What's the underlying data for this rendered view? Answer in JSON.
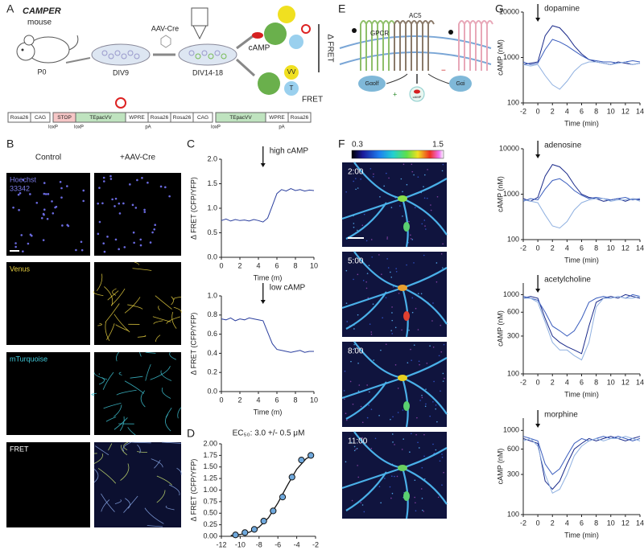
{
  "panels": {
    "letters": [
      "A",
      "B",
      "C",
      "D",
      "E",
      "F",
      "G"
    ],
    "A": {
      "title": "CAMPER",
      "subtitle": "mouse",
      "virus": "AAV-Cre",
      "stages": [
        "P0",
        "DIV9",
        "DIV14-18"
      ],
      "sensor": [
        "cAMP",
        "Δ FRET",
        "VV",
        "T",
        "FRET"
      ],
      "construct_off": [
        "Rosa26",
        "CAG",
        "STOP",
        "TEpacVV",
        "WPRE",
        "Rosa26"
      ],
      "construct_off_sites": [
        "loxP",
        "loxP",
        "pA"
      ],
      "construct_on": [
        "Rosa26",
        "CAG",
        "TEpacVV",
        "WPRE",
        "Rosa26"
      ],
      "construct_on_sites": [
        "loxP",
        "pA"
      ]
    },
    "B": {
      "columns": [
        "Control",
        "+AAV-Cre"
      ],
      "rows": [
        [
          "Hoechst",
          "33342"
        ],
        [
          "Venus"
        ],
        [
          "mTurquoise"
        ],
        [
          "FRET"
        ]
      ]
    },
    "E": {
      "receptor": "GPCR",
      "cyclase": "AC5",
      "g_stim": "Gαolf",
      "g_inhib": "Gαi",
      "product": "cAMP",
      "plus": "+",
      "minus": "−"
    },
    "F": {
      "colorbar_range": [
        0.3,
        1.5
      ],
      "times": [
        "2:00",
        "5:00",
        "8:00",
        "11:00"
      ]
    }
  },
  "chart_data": [
    {
      "type": "line",
      "title": "high cAMP",
      "arrow_x": 4.5,
      "xlabel": "Time (m)",
      "ylabel": "Δ FRET (CFP/YFP)",
      "x": [
        0,
        0.5,
        1,
        1.5,
        2,
        2.5,
        3,
        3.5,
        4,
        4.5,
        5,
        5.5,
        6,
        6.5,
        7,
        7.5,
        8,
        8.5,
        9,
        9.5,
        10
      ],
      "series": [
        {
          "color": "#2b3f9e",
          "values": [
            0.75,
            0.78,
            0.74,
            0.77,
            0.75,
            0.76,
            0.74,
            0.77,
            0.75,
            0.72,
            0.8,
            1.05,
            1.3,
            1.38,
            1.35,
            1.4,
            1.36,
            1.38,
            1.35,
            1.37,
            1.36
          ]
        }
      ],
      "xlim": [
        0,
        10
      ],
      "xticks": [
        0,
        2,
        4,
        6,
        8,
        10
      ],
      "ylim": [
        0,
        2
      ],
      "yticks": [
        {
          "value": 0,
          "label": "0.0"
        },
        {
          "value": 0.5,
          "label": "0.5"
        },
        {
          "value": 1,
          "label": "1.0"
        },
        {
          "value": 1.5,
          "label": "1.5"
        },
        {
          "value": 2,
          "label": "2.0"
        }
      ]
    },
    {
      "type": "line",
      "title": "low cAMP",
      "arrow_x": 4.5,
      "xlabel": "Time (m)",
      "ylabel": "Δ FRET (CFP/YFP)",
      "x": [
        0,
        0.5,
        1,
        1.5,
        2,
        2.5,
        3,
        3.5,
        4,
        4.5,
        5,
        5.5,
        6,
        6.5,
        7,
        7.5,
        8,
        8.5,
        9,
        9.5,
        10
      ],
      "series": [
        {
          "color": "#2b3f9e",
          "values": [
            0.76,
            0.75,
            0.77,
            0.74,
            0.76,
            0.75,
            0.77,
            0.76,
            0.75,
            0.74,
            0.62,
            0.5,
            0.44,
            0.43,
            0.42,
            0.41,
            0.42,
            0.43,
            0.41,
            0.42,
            0.42
          ]
        }
      ],
      "xlim": [
        0,
        10
      ],
      "xticks": [
        0,
        2,
        4,
        6,
        8,
        10
      ],
      "ylim": [
        0,
        1
      ],
      "yticks": [
        {
          "value": 0,
          "label": "0.0"
        },
        {
          "value": 0.2,
          "label": "0.2"
        },
        {
          "value": 0.4,
          "label": "0.4"
        },
        {
          "value": 0.6,
          "label": "0.6"
        },
        {
          "value": 0.8,
          "label": "0.8"
        },
        {
          "value": 1,
          "label": "1.0"
        }
      ]
    },
    {
      "type": "scatter",
      "title": "EC₅₀: 3.0 +/- 0.5 μM",
      "xlabel": "cAMP, log M",
      "ylabel": "Δ FRET (CFP/YFP)",
      "color": "#6fa8dc",
      "x": [
        -10.5,
        -9.5,
        -8.5,
        -7.5,
        -6.5,
        -5.5,
        -4.5,
        -3.5,
        -2.5
      ],
      "values": [
        0.03,
        0.08,
        0.15,
        0.33,
        0.55,
        0.85,
        1.28,
        1.65,
        1.75
      ],
      "fit": {
        "x": [
          -11,
          -10,
          -9,
          -8,
          -7,
          -6,
          -5,
          -4,
          -3,
          -2.5
        ],
        "values": [
          0.02,
          0.04,
          0.09,
          0.2,
          0.4,
          0.72,
          1.1,
          1.45,
          1.68,
          1.73
        ]
      },
      "xlim": [
        -12,
        -2
      ],
      "xticks": [
        -12,
        -10,
        -8,
        -6,
        -4,
        -2
      ],
      "ylim": [
        0,
        2
      ],
      "yticks": [
        {
          "value": 0,
          "label": "0.00"
        },
        {
          "value": 0.25,
          "label": "0.25"
        },
        {
          "value": 0.5,
          "label": "0.50"
        },
        {
          "value": 0.75,
          "label": "0.75"
        },
        {
          "value": 1,
          "label": "1.00"
        },
        {
          "value": 1.25,
          "label": "1.25"
        },
        {
          "value": 1.5,
          "label": "1.50"
        },
        {
          "value": 1.75,
          "label": "1.75"
        },
        {
          "value": 2,
          "label": "2.00"
        }
      ]
    },
    {
      "type": "line",
      "title": "dopamine",
      "arrow_x": 0,
      "xlabel": "Time (min)",
      "ylabel": "cAMP (nM)",
      "log_y": true,
      "x": [
        -2,
        -1,
        0,
        1,
        2,
        3,
        4,
        5,
        6,
        7,
        8,
        9,
        10,
        11,
        12,
        13,
        14
      ],
      "series": [
        {
          "color": "#1a2a8a",
          "values": [
            700,
            750,
            800,
            3000,
            5000,
            4500,
            3000,
            1800,
            1200,
            900,
            800,
            750,
            700,
            800,
            750,
            700,
            750
          ]
        },
        {
          "color": "#3a5dbd",
          "values": [
            800,
            700,
            750,
            1500,
            2500,
            2200,
            1800,
            1400,
            1100,
            900,
            850,
            800,
            800,
            750,
            800,
            850,
            800
          ]
        },
        {
          "color": "#8fb0e0",
          "values": [
            700,
            650,
            700,
            400,
            250,
            200,
            300,
            500,
            700,
            800,
            800,
            750,
            700,
            750,
            800,
            700,
            750
          ]
        }
      ],
      "xlim": [
        -2,
        14
      ],
      "xticks": [
        -2,
        0,
        2,
        4,
        6,
        8,
        10,
        12,
        14
      ],
      "ylim": [
        100,
        10000
      ],
      "yticks": [
        100,
        1000,
        10000
      ]
    },
    {
      "type": "line",
      "title": "adenosine",
      "arrow_x": 0,
      "xlabel": "Time (min)",
      "ylabel": "cAMP (nM)",
      "log_y": true,
      "x": [
        -2,
        -1,
        0,
        1,
        2,
        3,
        4,
        5,
        6,
        7,
        8,
        9,
        10,
        11,
        12,
        13,
        14
      ],
      "series": [
        {
          "color": "#1a2a8a",
          "values": [
            800,
            700,
            850,
            2500,
            4500,
            4000,
            2800,
            1600,
            1000,
            850,
            800,
            700,
            750,
            800,
            700,
            800,
            750
          ]
        },
        {
          "color": "#3a5dbd",
          "values": [
            700,
            800,
            750,
            1300,
            2000,
            2200,
            1700,
            1200,
            950,
            800,
            850,
            800,
            750,
            800,
            850,
            750,
            800
          ]
        },
        {
          "color": "#8fb0e0",
          "values": [
            750,
            700,
            650,
            350,
            200,
            180,
            250,
            450,
            650,
            750,
            800,
            800,
            700,
            750,
            750,
            800,
            700
          ]
        }
      ],
      "xlim": [
        -2,
        14
      ],
      "xticks": [
        -2,
        0,
        2,
        4,
        6,
        8,
        10,
        12,
        14
      ],
      "ylim": [
        100,
        10000
      ],
      "yticks": [
        100,
        1000,
        10000
      ]
    },
    {
      "type": "line",
      "title": "acetylcholine",
      "arrow_x": 0,
      "xlabel": "Time (min)",
      "ylabel": "cAMP (nM)",
      "log_y": true,
      "x": [
        -2,
        -1,
        0,
        1,
        2,
        3,
        4,
        5,
        6,
        7,
        8,
        9,
        10,
        11,
        12,
        13,
        14
      ],
      "series": [
        {
          "color": "#1a2a8a",
          "values": [
            900,
            950,
            900,
            500,
            300,
            250,
            220,
            200,
            180,
            400,
            800,
            900,
            950,
            900,
            1000,
            950,
            900
          ]
        },
        {
          "color": "#3a5dbd",
          "values": [
            950,
            900,
            850,
            600,
            400,
            350,
            300,
            350,
            500,
            800,
            900,
            950,
            900,
            950,
            900,
            1000,
            950
          ]
        },
        {
          "color": "#8fb0e0",
          "values": [
            900,
            900,
            800,
            450,
            250,
            200,
            200,
            170,
            150,
            250,
            700,
            900,
            900,
            950,
            900,
            900,
            950
          ]
        }
      ],
      "xlim": [
        -2,
        14
      ],
      "xticks": [
        -2,
        0,
        2,
        4,
        6,
        8,
        10,
        12,
        14
      ],
      "ylim": [
        100,
        1400
      ],
      "yticks": [
        100,
        300,
        600,
        1000
      ]
    },
    {
      "type": "line",
      "title": "morphine",
      "arrow_x": 0,
      "xlabel": "Time (min)",
      "ylabel": "cAMP (nM)",
      "log_y": true,
      "x": [
        -2,
        -1,
        0,
        1,
        2,
        3,
        4,
        5,
        6,
        7,
        8,
        9,
        10,
        11,
        12,
        13,
        14
      ],
      "series": [
        {
          "color": "#1a2a8a",
          "values": [
            800,
            750,
            700,
            250,
            200,
            250,
            400,
            600,
            700,
            800,
            750,
            800,
            850,
            800,
            750,
            800,
            850
          ]
        },
        {
          "color": "#3a5dbd",
          "values": [
            850,
            800,
            750,
            400,
            300,
            350,
            500,
            700,
            800,
            750,
            800,
            850,
            800,
            850,
            800,
            750,
            800
          ]
        },
        {
          "color": "#8fb0e0",
          "values": [
            750,
            800,
            650,
            300,
            180,
            200,
            300,
            500,
            650,
            750,
            800,
            750,
            800,
            800,
            850,
            800,
            750
          ]
        }
      ],
      "xlim": [
        -2,
        14
      ],
      "xticks": [
        -2,
        0,
        2,
        4,
        6,
        8,
        10,
        12,
        14
      ],
      "ylim": [
        100,
        1400
      ],
      "yticks": [
        100,
        300,
        600,
        1000
      ]
    }
  ]
}
